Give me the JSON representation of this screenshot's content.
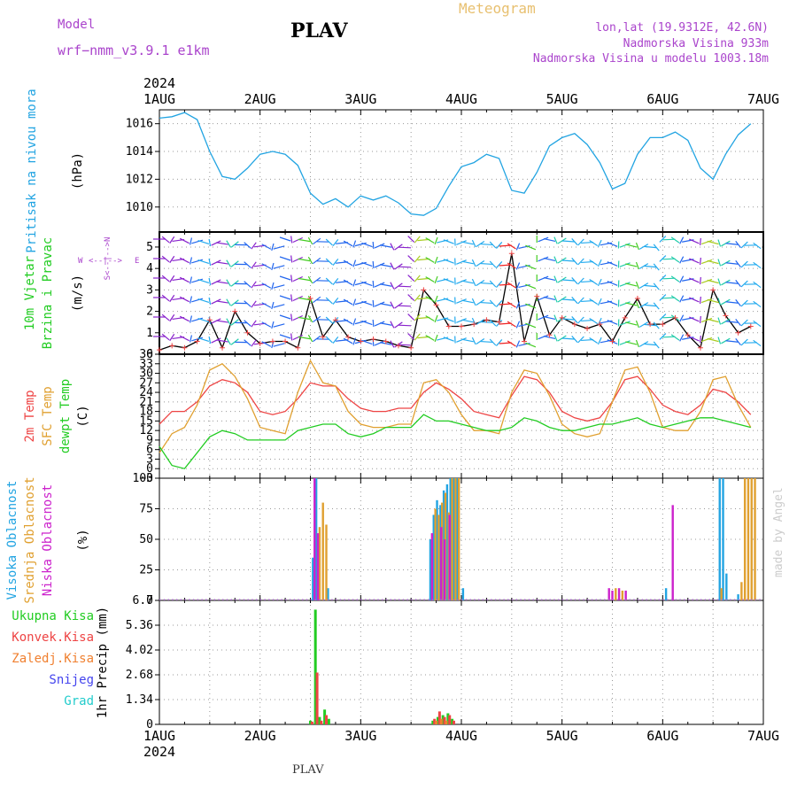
{
  "header": {
    "model_label": "Model",
    "model_name": "wrf−nmm_v3.9.1  e1km",
    "station_title": "PLAV",
    "meteogram_label": "Meteogram",
    "lonlat": "lon,lat (19.9312E, 42.6N)",
    "altitude": "Nadmorska Visina 933m",
    "model_altitude": "Nadmorska Visina u modelu 1003.18m",
    "year": "2024"
  },
  "footer": {
    "station": "PLAV",
    "credit": "made by Angel"
  },
  "colors": {
    "pressure": "#22a4e2",
    "temp2m": "#ee4444",
    "sfc_temp": "#e0a030",
    "dewpt": "#22cc22",
    "high_cloud": "#22a4e2",
    "mid_cloud": "#e0a030",
    "low_cloud": "#cc22cc",
    "total_precip": "#22cc22",
    "conv_precip": "#ee4444",
    "frozen_precip": "#f08030",
    "snow": "#4444ee",
    "hail": "#22cccc",
    "purple_text": "#aa44cc",
    "gold_text": "#e8c070"
  },
  "chart_data": [
    {
      "type": "line",
      "panel": "pressure",
      "ylabel_main": "Pritisak na nivou mora",
      "ylabel_unit": "(hPa)",
      "x_ticks": [
        "1AUG",
        "2AUG",
        "3AUG",
        "4AUG",
        "5AUG",
        "6AUG",
        "7AUG"
      ],
      "ylim": [
        1008.2,
        1017.0
      ],
      "y_ticks": [
        1010,
        1012,
        1014,
        1016
      ],
      "grid": true,
      "series": [
        {
          "values": [
            1016.4,
            1016.5,
            1016.8,
            1016.3,
            1014.0,
            1012.2,
            1012.0,
            1012.8,
            1013.8,
            1014.0,
            1013.8,
            1013.0,
            1011.0,
            1010.2,
            1010.6,
            1010.0,
            1010.8,
            1010.5,
            1010.8,
            1010.3,
            1009.5,
            1009.4,
            1009.9,
            1011.5,
            1012.9,
            1013.2,
            1013.8,
            1013.5,
            1011.2,
            1011.0,
            1012.5,
            1014.4,
            1015.0,
            1015.3,
            1014.5,
            1013.2,
            1011.3,
            1011.7,
            1013.8,
            1015.0,
            1015.0,
            1015.4,
            1014.8,
            1012.8,
            1012.0,
            1013.8,
            1015.2,
            1016.0
          ]
        }
      ]
    },
    {
      "type": "line",
      "panel": "wind",
      "ylabel_main": "10m Vjetar",
      "ylabel_sub": "Brzina i Pravac",
      "ylabel_unit": "(m/s)",
      "compass": {
        "n": "N",
        "s": "S",
        "w": "W",
        "e": "E"
      },
      "ylim": [
        0,
        5.7
      ],
      "y_ticks": [
        0,
        1,
        2,
        3,
        4,
        5
      ],
      "grid": true,
      "series": [
        {
          "values": [
            0.2,
            0.4,
            0.3,
            0.6,
            1.6,
            0.3,
            2.0,
            1.0,
            0.5,
            0.6,
            0.6,
            0.3,
            2.6,
            0.8,
            1.6,
            0.8,
            0.6,
            0.7,
            0.6,
            0.4,
            0.3,
            3.0,
            2.3,
            1.3,
            1.3,
            1.4,
            1.6,
            1.5,
            4.7,
            0.6,
            2.7,
            0.9,
            1.7,
            1.4,
            1.2,
            1.4,
            0.6,
            1.7,
            2.6,
            1.4,
            1.4,
            1.7,
            0.9,
            0.3,
            3.0,
            1.8,
            1.0,
            1.3
          ]
        }
      ]
    },
    {
      "type": "line",
      "panel": "temperature",
      "ylabel_main": "2m Temp",
      "ylabel_sub": "SFC Temp",
      "ylabel_sub2": "dewpt Temp",
      "ylabel_unit": "(C)",
      "ylim": [
        -3,
        36
      ],
      "y_ticks": [
        -3,
        0,
        3,
        6,
        9,
        12,
        15,
        18,
        21,
        24,
        27,
        30,
        33,
        36
      ],
      "y_tick_labels": [
        "−3",
        "0",
        "3",
        "6",
        "9",
        "12",
        "15",
        "18",
        "21",
        "24",
        "27",
        "30",
        "33",
        "36"
      ],
      "grid": true,
      "series": [
        {
          "name": "2m Temp",
          "values": [
            14,
            18,
            18,
            21,
            26,
            28,
            27,
            24,
            18,
            17,
            18,
            22,
            27,
            26,
            26,
            22,
            19,
            18,
            18,
            19,
            19,
            24,
            27,
            25,
            22,
            18,
            17,
            16,
            23,
            29,
            28,
            24,
            18,
            16,
            15,
            16,
            21,
            28,
            29,
            25,
            20,
            18,
            17,
            20,
            25,
            24,
            21,
            17
          ]
        },
        {
          "name": "SFC Temp",
          "values": [
            5,
            11,
            13,
            20,
            31,
            33,
            29,
            22,
            13,
            12,
            11,
            24,
            34,
            27,
            26,
            18,
            14,
            13,
            13,
            14,
            14,
            27,
            28,
            24,
            17,
            12,
            12,
            11,
            24,
            31,
            30,
            23,
            14,
            11,
            10,
            11,
            21,
            31,
            32,
            24,
            13,
            12,
            12,
            18,
            28,
            29,
            20,
            13
          ]
        },
        {
          "name": "dewpt Temp",
          "values": [
            7,
            1,
            0,
            5,
            10,
            12,
            11,
            9,
            9,
            9,
            9,
            12,
            13,
            14,
            14,
            11,
            10,
            11,
            13,
            13,
            13,
            17,
            15,
            15,
            14,
            13,
            12,
            12,
            13,
            16,
            15,
            13,
            12,
            12,
            13,
            14,
            14,
            15,
            16,
            14,
            13,
            14,
            15,
            16,
            16,
            15,
            14,
            13
          ]
        }
      ]
    },
    {
      "type": "bar",
      "panel": "clouds",
      "ylabel_high": "Visoka Oblacnost",
      "ylabel_mid": "Srednja Oblacnost",
      "ylabel_low": "Niska  Oblacnost",
      "ylabel_unit": "(%)",
      "ylim": [
        0,
        100
      ],
      "y_ticks": [
        0,
        25,
        50,
        75,
        100
      ],
      "grid": true,
      "series": [
        {
          "name": "high",
          "points": [
            [
              36.6,
              35
            ],
            [
              37.4,
              100
            ],
            [
              40.2,
              10
            ],
            [
              64.6,
              50
            ],
            [
              65.4,
              70
            ],
            [
              66.2,
              82
            ],
            [
              67.0,
              78
            ],
            [
              67.8,
              90
            ],
            [
              68.6,
              95
            ],
            [
              69.4,
              100
            ],
            [
              70.2,
              100
            ],
            [
              71.0,
              100
            ],
            [
              72.4,
              10
            ],
            [
              120.8,
              10
            ],
            [
              133.6,
              100
            ],
            [
              134.4,
              100
            ],
            [
              135.2,
              22
            ],
            [
              138.0,
              5
            ]
          ]
        },
        {
          "name": "mid",
          "points": [
            [
              38.2,
              60
            ],
            [
              39.0,
              80
            ],
            [
              39.8,
              62
            ],
            [
              65.8,
              75
            ],
            [
              66.6,
              70
            ],
            [
              67.4,
              80
            ],
            [
              68.2,
              88
            ],
            [
              69.0,
              72
            ],
            [
              69.8,
              100
            ],
            [
              70.6,
              100
            ],
            [
              71.4,
              100
            ],
            [
              108.8,
              10
            ],
            [
              110.4,
              8
            ],
            [
              134.0,
              10
            ],
            [
              138.8,
              15
            ],
            [
              139.6,
              100
            ],
            [
              140.4,
              100
            ],
            [
              141.2,
              100
            ],
            [
              142.0,
              100
            ],
            [
              156.0,
              10
            ],
            [
              157.6,
              15
            ],
            [
              162.4,
              55
            ],
            [
              163.2,
              70
            ]
          ]
        },
        {
          "name": "low",
          "points": [
            [
              37.0,
              100
            ],
            [
              37.8,
              55
            ],
            [
              65.0,
              55
            ],
            [
              67.2,
              60
            ],
            [
              68.0,
              50
            ],
            [
              69.2,
              70
            ],
            [
              107.2,
              10
            ],
            [
              108.0,
              8
            ],
            [
              109.6,
              10
            ],
            [
              111.2,
              8
            ],
            [
              122.4,
              78
            ],
            [
              155.2,
              8
            ],
            [
              156.8,
              10
            ],
            [
              158.4,
              58
            ]
          ]
        }
      ]
    },
    {
      "type": "bar",
      "panel": "precip",
      "legend": [
        "Ukupna  Kisa",
        "Konvek.Kisa",
        "Zaledj.Kisa",
        "Snijeg",
        "Grad"
      ],
      "ylabel": "1hr Precip (mm)",
      "ylim": [
        0,
        6.7
      ],
      "y_ticks": [
        0,
        1.34,
        2.68,
        4.02,
        5.36,
        6.7
      ],
      "grid": true,
      "series": [
        {
          "name": "Ukupna  Kisa",
          "points": [
            [
              36.0,
              0.2
            ],
            [
              37.2,
              6.2
            ],
            [
              38.2,
              0.4
            ],
            [
              39.4,
              0.8
            ],
            [
              40.4,
              0.3
            ],
            [
              65.2,
              0.2
            ],
            [
              66.4,
              0.4
            ],
            [
              67.6,
              0.5
            ],
            [
              68.8,
              0.6
            ],
            [
              69.8,
              0.3
            ],
            [
              159.6,
              0.2
            ],
            [
              164.0,
              0.3
            ]
          ]
        },
        {
          "name": "Konvek.Kisa",
          "points": [
            [
              36.4,
              0.15
            ],
            [
              37.6,
              2.8
            ],
            [
              38.6,
              0.2
            ],
            [
              39.8,
              0.5
            ],
            [
              65.6,
              0.3
            ],
            [
              66.8,
              0.7
            ],
            [
              68.0,
              0.4
            ],
            [
              69.2,
              0.5
            ],
            [
              70.2,
              0.2
            ],
            [
              160.0,
              0.15
            ]
          ]
        },
        {
          "name": "Zaledj.Kisa",
          "points": [
            [
              66.0,
              0.2
            ],
            [
              67.2,
              0.3
            ],
            [
              68.4,
              0.2
            ]
          ]
        }
      ]
    }
  ]
}
